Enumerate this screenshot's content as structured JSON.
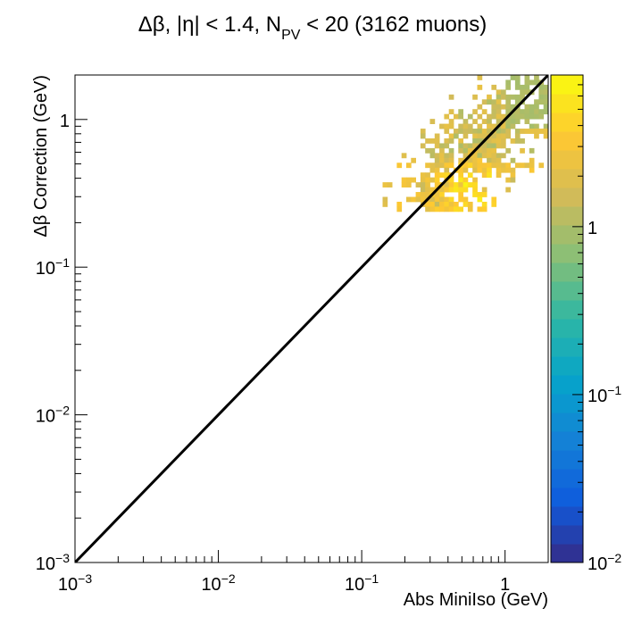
{
  "chart_data": {
    "type": "heatmap",
    "title": {
      "parts": [
        "Δβ, |η| < 1.4, N",
        "PV",
        " < 20 (3162 muons)"
      ],
      "text": "Δβ, |η| < 1.4, N_PV < 20 (3162 muons)"
    },
    "xlabel": "Abs MiniIso (GeV)",
    "ylabel": "Δβ Correction (GeV)",
    "x_scale": "log",
    "y_scale": "log",
    "xlim": [
      0.001,
      2
    ],
    "ylim": [
      0.001,
      2
    ],
    "x_ticks": [
      {
        "base": "10",
        "exp": "−3",
        "value": 0.001
      },
      {
        "base": "10",
        "exp": "−2",
        "value": 0.01
      },
      {
        "base": "10",
        "exp": "−1",
        "value": 0.1
      },
      {
        "base": "1",
        "exp": "",
        "value": 1
      }
    ],
    "y_ticks": [
      {
        "base": "10",
        "exp": "−3",
        "value": 0.001
      },
      {
        "base": "10",
        "exp": "−2",
        "value": 0.01
      },
      {
        "base": "10",
        "exp": "−1",
        "value": 0.1
      },
      {
        "base": "1",
        "exp": "",
        "value": 1
      }
    ],
    "z_scale": "log",
    "zlim": [
      0.01,
      8
    ],
    "z_ticks": [
      {
        "base": "10",
        "exp": "−2",
        "value": 0.01
      },
      {
        "base": "10",
        "exp": "−1",
        "value": 0.1
      },
      {
        "base": "1",
        "exp": "",
        "value": 1
      }
    ],
    "palette": [
      "#352a87",
      "#0f5cdd",
      "#1481d6",
      "#06a4ca",
      "#2eb7a4",
      "#87bf77",
      "#d1bb59",
      "#fec832",
      "#f9fb0e"
    ],
    "reference_line": {
      "label": "y = x",
      "from": [
        0.001,
        0.001
      ],
      "to": [
        2,
        2
      ],
      "color": "#000000"
    },
    "seed": 7
  }
}
